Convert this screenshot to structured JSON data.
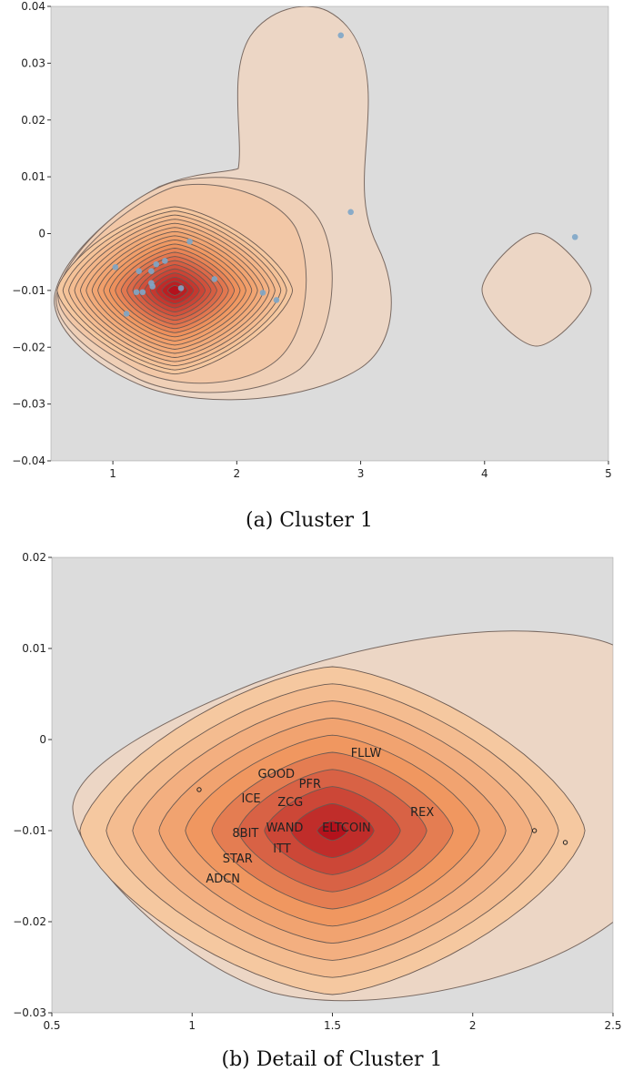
{
  "chart_data": [
    {
      "type": "scatter",
      "subtype": "density-contour",
      "caption": "(a) Cluster 1",
      "xlim": [
        0.5,
        5
      ],
      "ylim": [
        -0.04,
        0.04
      ],
      "xticks": [
        "1",
        "2",
        "3",
        "4",
        "5"
      ],
      "yticks": [
        "0.04",
        "0.03",
        "0.02",
        "0.01",
        "0",
        "−0.01",
        "−0.02",
        "−0.03",
        "−0.04"
      ],
      "point_color": "#7ea6c8",
      "points": [
        {
          "x": 1.02,
          "y": -0.0059
        },
        {
          "x": 1.21,
          "y": -0.0066
        },
        {
          "x": 1.11,
          "y": -0.0141
        },
        {
          "x": 1.19,
          "y": -0.0103
        },
        {
          "x": 1.24,
          "y": -0.0103
        },
        {
          "x": 1.31,
          "y": -0.0066
        },
        {
          "x": 1.35,
          "y": -0.0054
        },
        {
          "x": 1.42,
          "y": -0.0048
        },
        {
          "x": 1.31,
          "y": -0.0087
        },
        {
          "x": 1.32,
          "y": -0.0093
        },
        {
          "x": 1.55,
          "y": -0.0096
        },
        {
          "x": 1.62,
          "y": -0.0014
        },
        {
          "x": 1.82,
          "y": -0.008
        },
        {
          "x": 2.21,
          "y": -0.0104
        },
        {
          "x": 2.32,
          "y": -0.0117
        },
        {
          "x": 2.84,
          "y": 0.0349
        },
        {
          "x": 2.92,
          "y": 0.0038
        },
        {
          "x": 4.73,
          "y": -0.0006
        }
      ]
    },
    {
      "type": "scatter",
      "subtype": "density-contour",
      "caption": "(b) Detail of Cluster 1",
      "xlim": [
        0.5,
        2.5
      ],
      "ylim": [
        -0.03,
        0.02
      ],
      "xticks": [
        "0.5",
        "1",
        "1.5",
        "2",
        "2.5"
      ],
      "yticks": [
        "0.02",
        "0.01",
        "0",
        "−0.01",
        "−0.02",
        "−0.03"
      ],
      "points": [
        {
          "x": 1.62,
          "y": -0.0014,
          "label": "FLLW"
        },
        {
          "x": 1.42,
          "y": -0.0048,
          "label": "PFR"
        },
        {
          "x": 1.35,
          "y": -0.0054,
          "label": "ZCG"
        },
        {
          "x": 1.21,
          "y": -0.0064,
          "label": "ICE"
        },
        {
          "x": 1.3,
          "y": -0.0065,
          "label": "GOOD"
        },
        {
          "x": 1.33,
          "y": -0.0082,
          "label": "WAND"
        },
        {
          "x": 1.32,
          "y": -0.0091,
          "label": "ITT"
        },
        {
          "x": 1.19,
          "y": -0.0102,
          "label": "8BIT"
        },
        {
          "x": 1.24,
          "y": -0.0102,
          "label": "STAR"
        },
        {
          "x": 1.55,
          "y": -0.0096,
          "label": "ELTCOIN"
        },
        {
          "x": 1.82,
          "y": -0.0079,
          "label": "REX"
        },
        {
          "x": 1.11,
          "y": -0.0138,
          "label": "ADCN"
        },
        {
          "x": 1.025,
          "y": -0.0055
        },
        {
          "x": 2.22,
          "y": -0.01
        },
        {
          "x": 2.33,
          "y": -0.0113
        }
      ]
    }
  ]
}
